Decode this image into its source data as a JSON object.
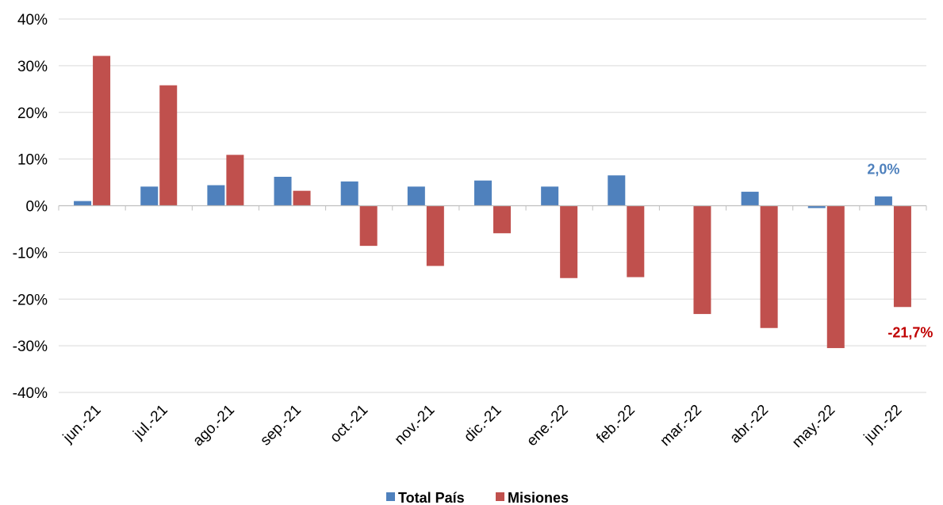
{
  "chart_data": {
    "type": "bar",
    "categories": [
      "jun.-21",
      "jul.-21",
      "ago.-21",
      "sep.-21",
      "oct.-21",
      "nov.-21",
      "dic.-21",
      "ene.-22",
      "feb.-22",
      "mar.-22",
      "abr.-22",
      "may.-22",
      "jun.-22"
    ],
    "series": [
      {
        "name": "Total País",
        "color": "#4f81bd",
        "values": [
          1.0,
          4.1,
          4.4,
          6.2,
          5.2,
          4.1,
          5.4,
          4.1,
          6.5,
          0.0,
          3.0,
          -0.5,
          2.0
        ]
      },
      {
        "name": "Misiones",
        "color": "#c0504d",
        "values": [
          32.1,
          25.8,
          10.9,
          3.2,
          -8.6,
          -12.9,
          -5.9,
          -15.5,
          -15.3,
          -23.2,
          -26.2,
          -30.5,
          -21.7
        ]
      }
    ],
    "ylim": [
      -40,
      40
    ],
    "yticks": [
      "40%",
      "30%",
      "20%",
      "10%",
      "0%",
      "-10%",
      "-20%",
      "-30%",
      "-40%"
    ],
    "grid": true,
    "legend_position": "bottom",
    "annotations": [
      {
        "text": "2,0%",
        "series": "Total País",
        "category": "jun.-22",
        "color": "#4f81bd"
      },
      {
        "text": "-21,7%",
        "series": "Misiones",
        "category": "jun.-22",
        "color": "#c00000"
      }
    ]
  }
}
